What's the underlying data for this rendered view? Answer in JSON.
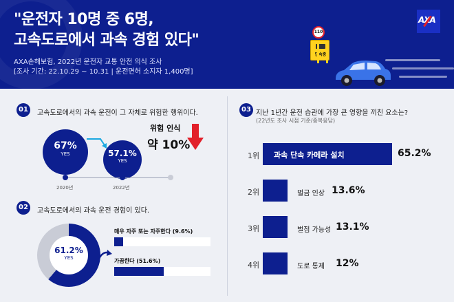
{
  "header": {
    "title_line1": "\"운전자 10명 중 6명,",
    "title_line2": "고속도로에서 과속 경험 있다\"",
    "subtitle_line1": "AXA손해보험, 2022년 운전자 교통 안전 의식 조사",
    "subtitle_line2": "[조사 기간: 22.10.29 ~ 10.31 | 운전면허 소지자 1,400명]",
    "logo_text": "AXA",
    "sign_speed": "110",
    "sign_text": "단속중",
    "brand_color": "#0d1f8f"
  },
  "section1": {
    "number": "01",
    "question": "고속도로에서의 과속 운전이 그 자체로 위험한 행위이다.",
    "points": [
      {
        "year": "2020년",
        "pct": "67%",
        "yes": "YES",
        "value": 67
      },
      {
        "year": "2022년",
        "pct": "57.1%",
        "yes": "YES",
        "value": 57.1
      }
    ],
    "drop_label": "위험 인식",
    "drop_value": "약 10%",
    "arrow_color": "#e2202a"
  },
  "section2": {
    "number": "02",
    "question": "고속도로에서의 과속 운전 경험이 있다.",
    "donut_pct": "61.2%",
    "donut_yes": "YES",
    "donut_value": 61.2,
    "items": [
      {
        "label": "매우 자주 또는 자주한다 (9.6%)",
        "value": 9.6
      },
      {
        "label": "가끔한다 (51.6%)",
        "value": 51.6
      }
    ]
  },
  "section3": {
    "number": "03",
    "question": "지난 1년간 운전 습관에 가장 큰 영향을 끼친 요소는?",
    "note": "(22년도 조사 시점 기준/중복응답)",
    "ranks": [
      {
        "rank": "1위",
        "label": "과속 단속 카메라 설치",
        "pct": "65.2%",
        "value": 65.2
      },
      {
        "rank": "2위",
        "label": "벌금 인상",
        "pct": "13.6%",
        "value": 13.6
      },
      {
        "rank": "3위",
        "label": "벌점 가능성",
        "pct": "13.1%",
        "value": 13.1
      },
      {
        "rank": "4위",
        "label": "도로 통제",
        "pct": "12%",
        "value": 12
      }
    ]
  }
}
